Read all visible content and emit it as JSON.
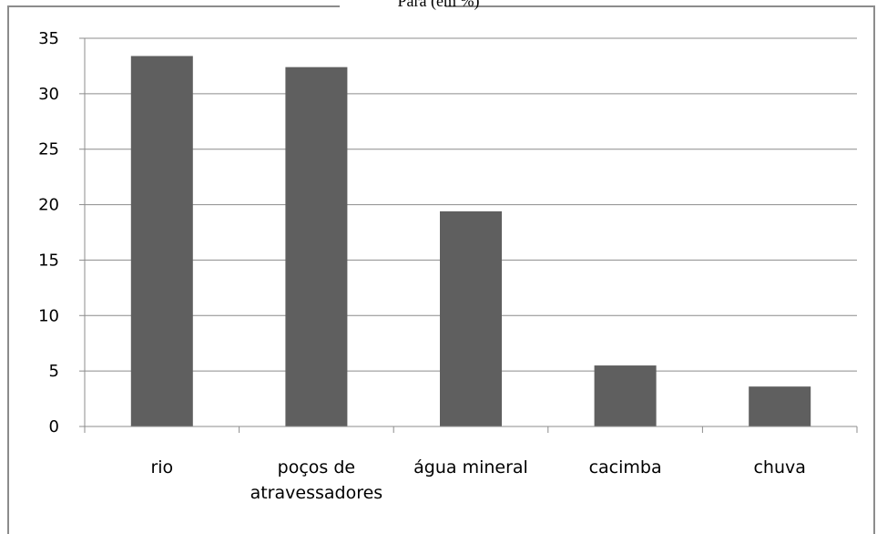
{
  "chart_data": {
    "type": "bar",
    "title": "Para (em %)",
    "xlabel": "",
    "ylabel": "",
    "categories": [
      [
        "rio"
      ],
      [
        "poços de",
        "atravessadores"
      ],
      [
        "água mineral"
      ],
      [
        "cacimba"
      ],
      [
        "chuva"
      ]
    ],
    "values": [
      33.4,
      32.4,
      19.4,
      5.5,
      3.6
    ],
    "ylim": [
      0,
      35
    ],
    "yticks": [
      "0",
      "5",
      "10",
      "15",
      "20",
      "25",
      "30",
      "35"
    ],
    "grid": true,
    "bar_color": "#5f5f5f",
    "grid_color": "#8c8c8c"
  }
}
